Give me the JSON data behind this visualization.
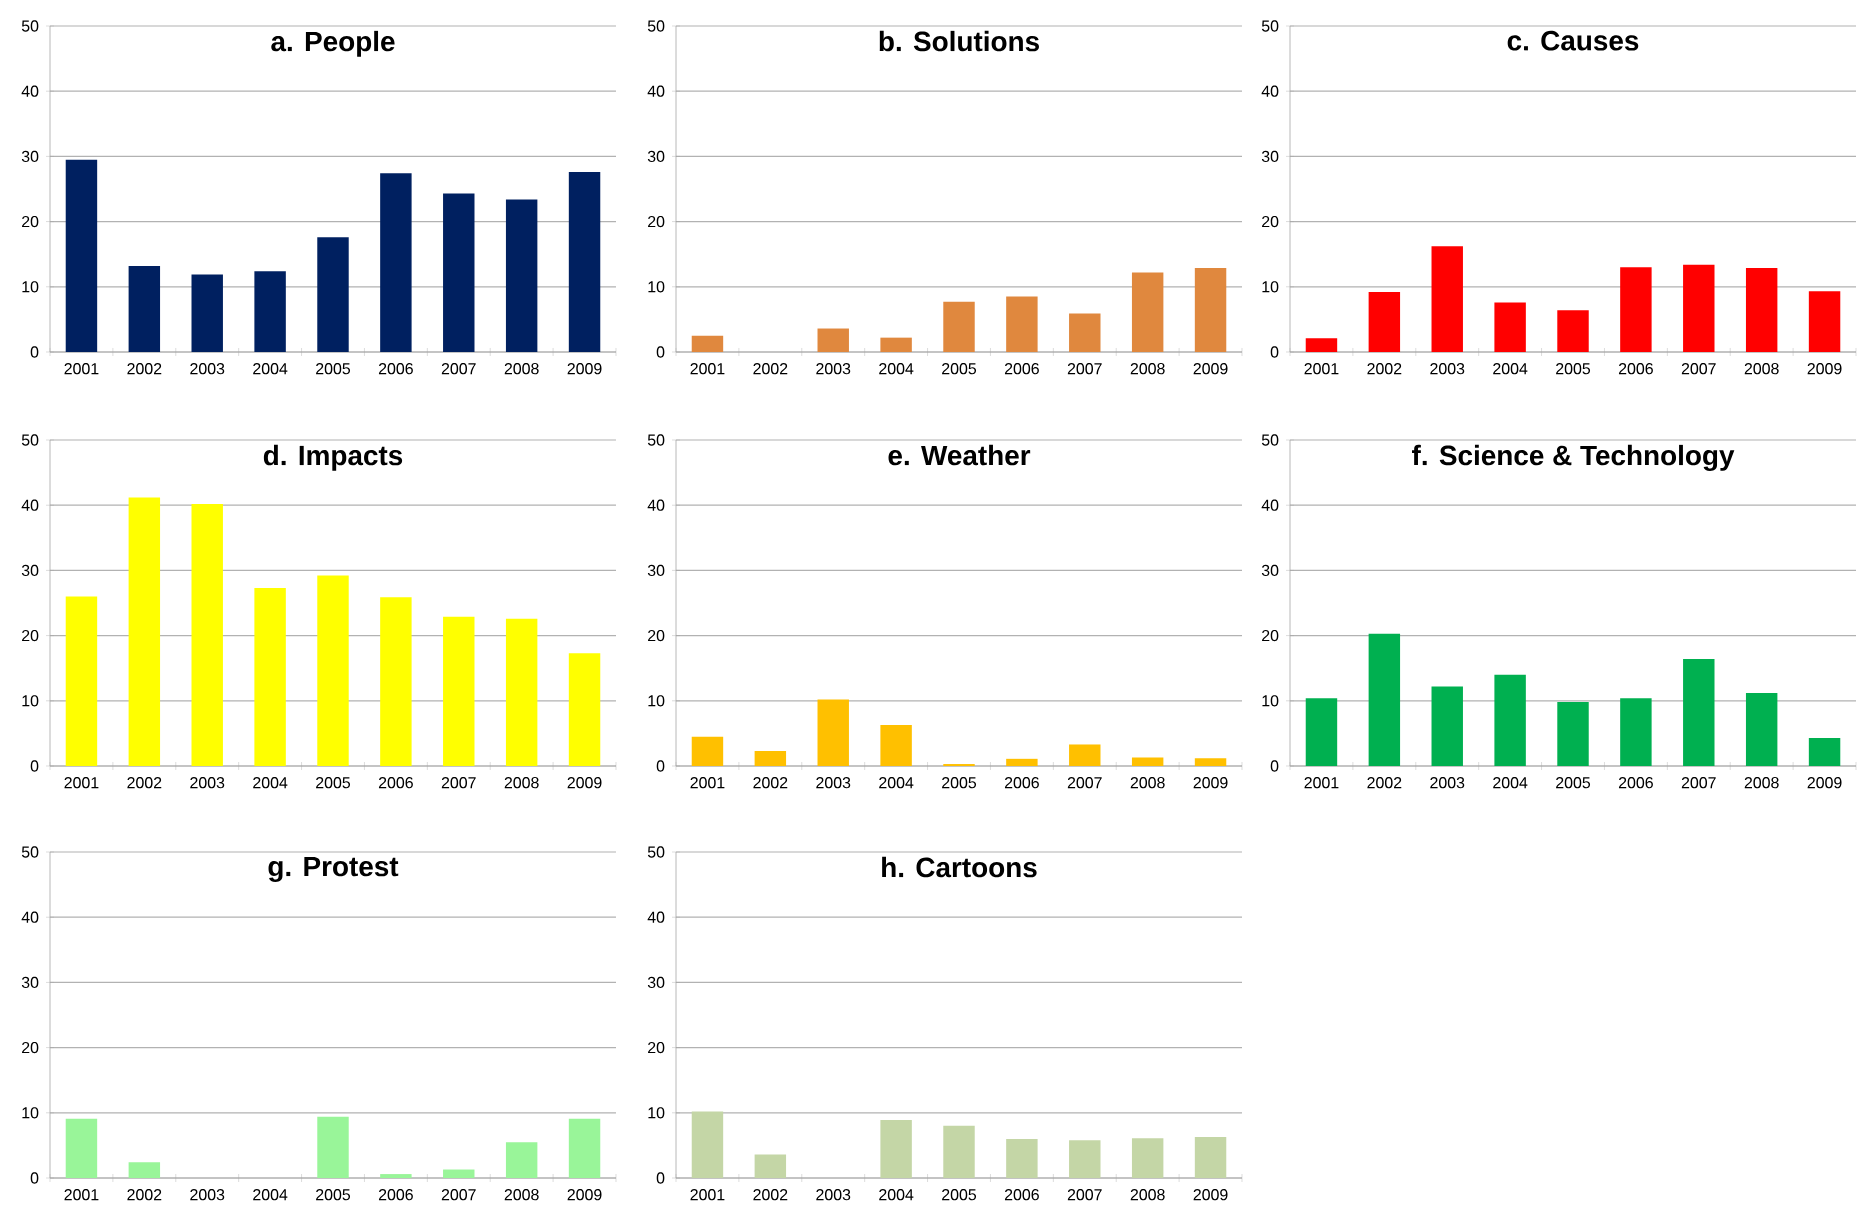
{
  "chart_data": [
    {
      "type": "bar",
      "title": "a. People",
      "categories": [
        "2001",
        "2002",
        "2003",
        "2004",
        "2005",
        "2006",
        "2007",
        "2008",
        "2009"
      ],
      "values": [
        29.5,
        13.2,
        11.9,
        12.4,
        17.6,
        27.4,
        24.3,
        23.4,
        27.6
      ],
      "color": "#002060",
      "ylim": [
        0,
        50
      ],
      "yticks": [
        0,
        10,
        20,
        30,
        40,
        50
      ],
      "grid": "y"
    },
    {
      "type": "bar",
      "title": "b. Solutions",
      "categories": [
        "2001",
        "2002",
        "2003",
        "2004",
        "2005",
        "2006",
        "2007",
        "2008",
        "2009"
      ],
      "values": [
        2.5,
        0,
        3.6,
        2.2,
        7.7,
        8.5,
        5.9,
        12.2,
        12.9
      ],
      "color": "#e0883e",
      "ylim": [
        0,
        50
      ],
      "yticks": [
        0,
        10,
        20,
        30,
        40,
        50
      ],
      "grid": "y"
    },
    {
      "type": "bar",
      "title": "c. Causes",
      "categories": [
        "2001",
        "2002",
        "2003",
        "2004",
        "2005",
        "2006",
        "2007",
        "2008",
        "2009"
      ],
      "values": [
        2.1,
        9.2,
        16.2,
        7.6,
        6.4,
        13,
        13.4,
        12.9,
        9.3
      ],
      "color": "#ff0000",
      "ylim": [
        0,
        50
      ],
      "yticks": [
        0,
        10,
        20,
        30,
        40,
        50
      ],
      "grid": "y"
    },
    {
      "type": "bar",
      "title": "d. Impacts",
      "categories": [
        "2001",
        "2002",
        "2003",
        "2004",
        "2005",
        "2006",
        "2007",
        "2008",
        "2009"
      ],
      "values": [
        26,
        41.2,
        40.2,
        27.3,
        29.2,
        25.9,
        22.9,
        22.6,
        17.3
      ],
      "color": "#ffff00",
      "ylim": [
        0,
        50
      ],
      "yticks": [
        0,
        10,
        20,
        30,
        40,
        50
      ],
      "grid": "y"
    },
    {
      "type": "bar",
      "title": "e. Weather",
      "categories": [
        "2001",
        "2002",
        "2003",
        "2004",
        "2005",
        "2006",
        "2007",
        "2008",
        "2009"
      ],
      "values": [
        4.5,
        2.3,
        10.2,
        6.3,
        0.3,
        1.1,
        3.3,
        1.3,
        1.2
      ],
      "color": "#ffc000",
      "ylim": [
        0,
        50
      ],
      "yticks": [
        0,
        10,
        20,
        30,
        40,
        50
      ],
      "grid": "y"
    },
    {
      "type": "bar",
      "title": "f. Science & Technology",
      "categories": [
        "2001",
        "2002",
        "2003",
        "2004",
        "2005",
        "2006",
        "2007",
        "2008",
        "2009"
      ],
      "values": [
        10.4,
        20.3,
        12.2,
        14,
        9.8,
        10.4,
        16.4,
        11.2,
        4.3
      ],
      "color": "#00b050",
      "ylim": [
        0,
        50
      ],
      "yticks": [
        0,
        10,
        20,
        30,
        40,
        50
      ],
      "grid": "y"
    },
    {
      "type": "bar",
      "title": "g. Protest",
      "categories": [
        "2001",
        "2002",
        "2003",
        "2004",
        "2005",
        "2006",
        "2007",
        "2008",
        "2009"
      ],
      "values": [
        9.1,
        2.4,
        0,
        0,
        9.4,
        0.6,
        1.3,
        5.5,
        9.1
      ],
      "color": "#99f599",
      "ylim": [
        0,
        50
      ],
      "yticks": [
        0,
        10,
        20,
        30,
        40,
        50
      ],
      "grid": "y"
    },
    {
      "type": "bar",
      "title": "h. Cartoons",
      "categories": [
        "2001",
        "2002",
        "2003",
        "2004",
        "2005",
        "2006",
        "2007",
        "2008",
        "2009"
      ],
      "values": [
        10.2,
        3.6,
        0,
        8.9,
        8,
        6,
        5.8,
        6.1,
        6.3
      ],
      "color": "#c4d6a6",
      "ylim": [
        0,
        50
      ],
      "yticks": [
        0,
        10,
        20,
        30,
        40,
        50
      ],
      "grid": "y"
    }
  ]
}
